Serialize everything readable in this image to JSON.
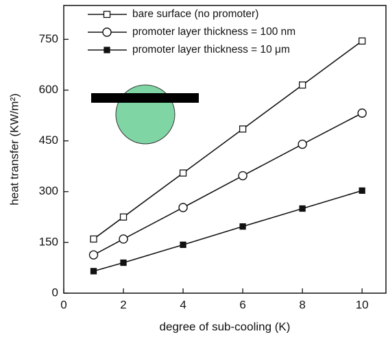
{
  "chart_data": {
    "type": "line",
    "x_label": "degree of sub-cooling (K)",
    "y_label": "heat transfer (KW/m²)",
    "x": [
      1,
      2,
      4,
      6,
      8,
      10
    ],
    "series": [
      {
        "name": "bare surface (no promoter)",
        "color": "#111111",
        "marker": "square-open",
        "values": [
          160,
          225,
          355,
          485,
          615,
          745
        ]
      },
      {
        "name": "promoter layer thickness = 100 nm",
        "color": "#111111",
        "marker": "circle-open",
        "values": [
          113,
          160,
          253,
          347,
          440,
          532
        ]
      },
      {
        "name": "promoter layer thickness = 10 μm",
        "color": "#111111",
        "marker": "square-filled",
        "values": [
          65,
          90,
          143,
          197,
          250,
          303
        ]
      }
    ],
    "xlim": [
      0,
      10.8
    ],
    "xticks": [
      0,
      2,
      4,
      6,
      8,
      10
    ],
    "ylim": [
      0,
      850
    ],
    "yticks": [
      0,
      150,
      300,
      450,
      600,
      750
    ],
    "legend": "upper left"
  }
}
